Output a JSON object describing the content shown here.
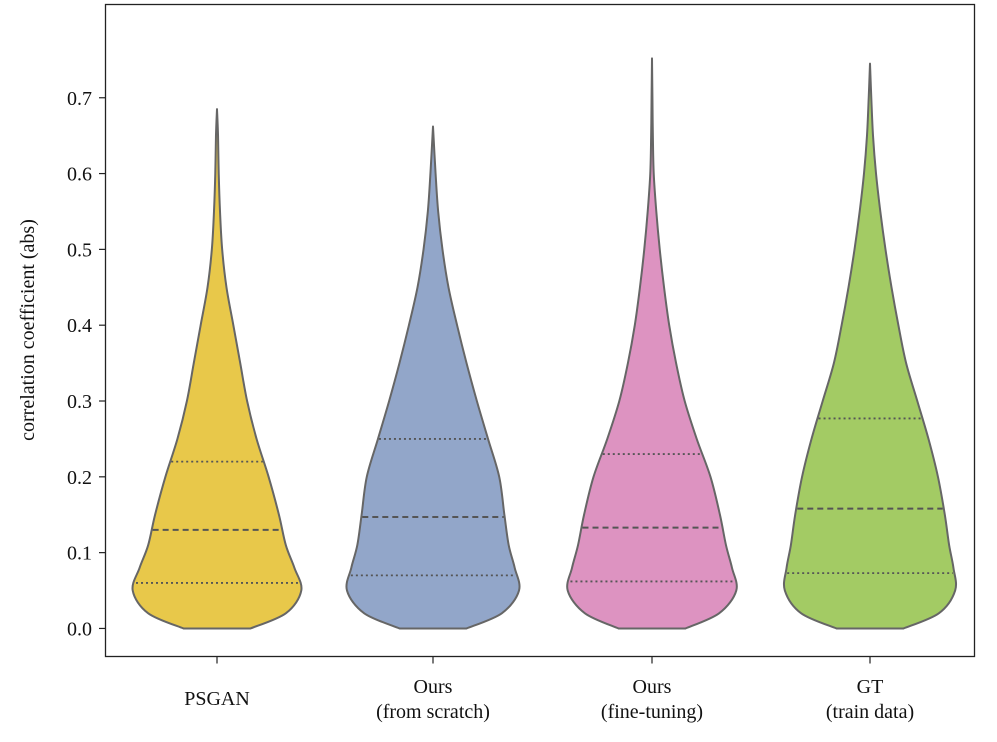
{
  "chart_data": {
    "type": "violin",
    "ylabel": "correlation coefficient (abs)",
    "xlabel": "",
    "ylim": [
      -0.037,
      0.823
    ],
    "yticks": [
      0.0,
      0.1,
      0.2,
      0.3,
      0.4,
      0.5,
      0.6,
      0.7
    ],
    "ytick_labels": [
      "0.0",
      "0.1",
      "0.2",
      "0.3",
      "0.4",
      "0.5",
      "0.6",
      "0.7"
    ],
    "grid": false,
    "series": [
      {
        "category_lines": [
          "PSGAN"
        ],
        "color": "#e8c84a",
        "max": 0.685,
        "quartiles": [
          0.06,
          0.13,
          0.22
        ],
        "density_profile": [
          [
            0.0,
            0.39
          ],
          [
            0.02,
            0.8
          ],
          [
            0.05,
            0.98
          ],
          [
            0.08,
            0.9
          ],
          [
            0.11,
            0.8
          ],
          [
            0.15,
            0.72
          ],
          [
            0.2,
            0.6
          ],
          [
            0.25,
            0.46
          ],
          [
            0.3,
            0.35
          ],
          [
            0.35,
            0.27
          ],
          [
            0.4,
            0.19
          ],
          [
            0.45,
            0.11
          ],
          [
            0.5,
            0.06
          ],
          [
            0.55,
            0.035
          ],
          [
            0.6,
            0.02
          ],
          [
            0.65,
            0.012
          ],
          [
            0.685,
            0.0
          ]
        ]
      },
      {
        "category_lines": [
          "Ours",
          "(from scratch)"
        ],
        "color": "#92a6c9",
        "max": 0.662,
        "quartiles": [
          0.07,
          0.147,
          0.25
        ],
        "density_profile": [
          [
            0.0,
            0.39
          ],
          [
            0.02,
            0.8
          ],
          [
            0.05,
            1.0
          ],
          [
            0.08,
            0.95
          ],
          [
            0.11,
            0.88
          ],
          [
            0.15,
            0.83
          ],
          [
            0.2,
            0.77
          ],
          [
            0.25,
            0.64
          ],
          [
            0.3,
            0.51
          ],
          [
            0.35,
            0.39
          ],
          [
            0.4,
            0.28
          ],
          [
            0.45,
            0.18
          ],
          [
            0.5,
            0.11
          ],
          [
            0.55,
            0.06
          ],
          [
            0.6,
            0.03
          ],
          [
            0.662,
            0.0
          ]
        ]
      },
      {
        "category_lines": [
          "Ours",
          "(fine-tuning)"
        ],
        "color": "#dd93c1",
        "max": 0.752,
        "quartiles": [
          0.062,
          0.133,
          0.23
        ],
        "density_profile": [
          [
            0.0,
            0.39
          ],
          [
            0.02,
            0.78
          ],
          [
            0.05,
            0.98
          ],
          [
            0.08,
            0.93
          ],
          [
            0.11,
            0.86
          ],
          [
            0.15,
            0.79
          ],
          [
            0.2,
            0.68
          ],
          [
            0.25,
            0.52
          ],
          [
            0.3,
            0.38
          ],
          [
            0.35,
            0.28
          ],
          [
            0.4,
            0.2
          ],
          [
            0.45,
            0.14
          ],
          [
            0.5,
            0.09
          ],
          [
            0.55,
            0.05
          ],
          [
            0.6,
            0.02
          ],
          [
            0.65,
            0.01
          ],
          [
            0.7,
            0.005
          ],
          [
            0.752,
            0.0
          ]
        ]
      },
      {
        "category_lines": [
          "GT",
          "(train data)"
        ],
        "color": "#a3cb64",
        "max": 0.745,
        "quartiles": [
          0.073,
          0.158,
          0.277
        ],
        "density_profile": [
          [
            0.0,
            0.39
          ],
          [
            0.02,
            0.8
          ],
          [
            0.05,
            0.99
          ],
          [
            0.08,
            0.97
          ],
          [
            0.11,
            0.92
          ],
          [
            0.15,
            0.87
          ],
          [
            0.2,
            0.79
          ],
          [
            0.25,
            0.68
          ],
          [
            0.3,
            0.55
          ],
          [
            0.35,
            0.42
          ],
          [
            0.4,
            0.33
          ],
          [
            0.45,
            0.25
          ],
          [
            0.5,
            0.18
          ],
          [
            0.55,
            0.12
          ],
          [
            0.6,
            0.07
          ],
          [
            0.65,
            0.035
          ],
          [
            0.7,
            0.015
          ],
          [
            0.745,
            0.0
          ]
        ]
      }
    ],
    "line_color": "#666666",
    "quartile_line_color": "#555555"
  }
}
